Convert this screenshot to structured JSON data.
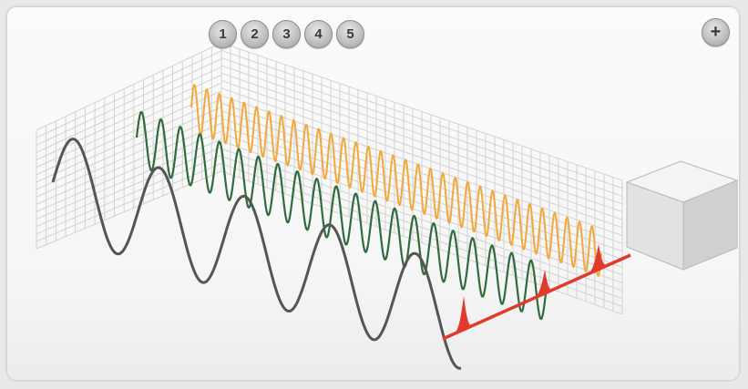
{
  "controls": {
    "steps": [
      {
        "label": "1"
      },
      {
        "label": "2"
      },
      {
        "label": "3"
      },
      {
        "label": "4"
      },
      {
        "label": "5"
      }
    ],
    "zoom_label": "+"
  },
  "colors": {
    "grid": "#d2d2d2",
    "low_wave": "#555555",
    "mid_wave": "#2f6b3c",
    "high_wave": "#f2a93b",
    "detector_line": "#e03a2a",
    "cube_face": "#dcdcdc"
  }
}
